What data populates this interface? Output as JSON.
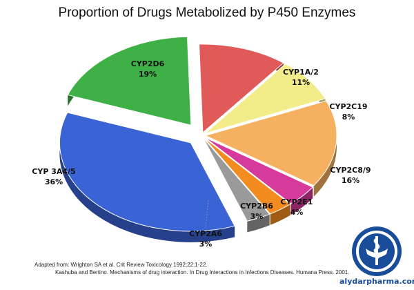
{
  "chart_data": {
    "type": "pie",
    "title": "Proportion of Drugs Metabolized by P450 Enzymes",
    "slices": [
      {
        "label": "CYP2D6",
        "value": 19,
        "value_label": "19%",
        "color": "#3fb045"
      },
      {
        "label": "CYP1A/2",
        "value": 11,
        "value_label": "11%",
        "color": "#e05a5a"
      },
      {
        "label": "CYP2C19",
        "value": 8,
        "value_label": "8%",
        "color": "#f2ec8a"
      },
      {
        "label": "CYP2C8/9",
        "value": 16,
        "value_label": "16%",
        "color": "#f5b060"
      },
      {
        "label": "CYP2E1",
        "value": 4,
        "value_label": "4%",
        "color": "#d63a9b"
      },
      {
        "label": "CYP2B6",
        "value": 3,
        "value_label": "3%",
        "color": "#f28c20"
      },
      {
        "label": "CYP2A6",
        "value": 3,
        "value_label": "3%",
        "color": "#9a9a9a"
      },
      {
        "label": "CYP 3A4/5",
        "value": 36,
        "value_label": "36%",
        "color": "#3a63d6"
      }
    ]
  },
  "citation": {
    "line1": "Adapted from: Wrighton SA et al. Crit Review Toxicology 1992;22:1-22.",
    "line2": "Kashuba and Bertino. Mechanisms of drug interaction. In Drug Interactions in Infections Diseases. Humana Press. 2001."
  },
  "watermark": {
    "text": "alydarpharma.com",
    "icon": "pharmacy-caduceus-icon",
    "color": "#1a4d99"
  }
}
